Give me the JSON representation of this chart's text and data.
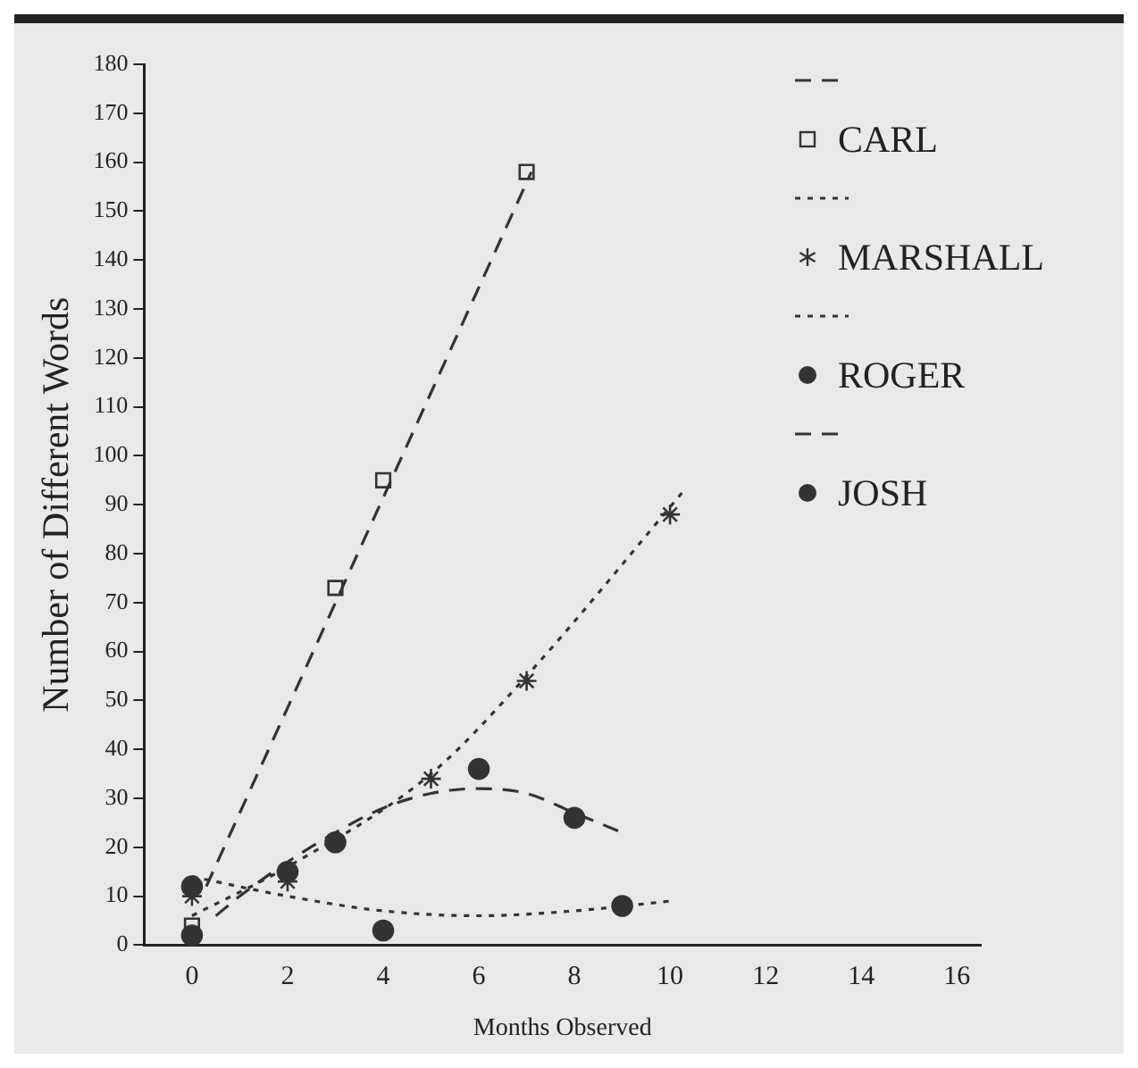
{
  "chart_data": {
    "type": "scatter",
    "xlabel": "Months Observed",
    "ylabel": "Number of Different Words",
    "xlim": [
      -1,
      16.5
    ],
    "xticks": [
      0,
      2,
      4,
      6,
      8,
      10,
      12,
      14,
      16
    ],
    "ylim": [
      0,
      180
    ],
    "yticks": [
      0,
      10,
      20,
      30,
      40,
      50,
      60,
      70,
      80,
      90,
      100,
      110,
      120,
      130,
      140,
      150,
      160,
      170,
      180
    ],
    "legend": "top right",
    "series": [
      {
        "type": "line",
        "color": "#333333",
        "line_style": "dashed",
        "x": [
          0.3,
          7.1
        ],
        "values": [
          12,
          158
        ]
      },
      {
        "name": "CARL",
        "color": "#333333",
        "marker": "square",
        "x": [
          0,
          3,
          4,
          7
        ],
        "values": [
          4,
          73,
          95,
          158
        ]
      },
      {
        "type": "line",
        "color": "#333333",
        "line_style": "dotted",
        "x": [
          0,
          2,
          5,
          7,
          10.3
        ],
        "values": [
          6,
          16,
          35,
          55,
          93
        ]
      },
      {
        "name": "MARSHALL",
        "color": "#333333",
        "marker": "cross",
        "x": [
          0,
          2,
          5,
          7,
          10
        ],
        "values": [
          10,
          13,
          34,
          54,
          88
        ]
      },
      {
        "type": "line",
        "color": "#333333",
        "line_style": "dotted",
        "x": [
          0,
          2,
          4,
          6,
          8,
          10
        ],
        "values": [
          14,
          10,
          7,
          6,
          7,
          9
        ]
      },
      {
        "name": "ROGER",
        "color": "#333333",
        "marker": "circle",
        "x": [
          0,
          2,
          4,
          9
        ],
        "values": [
          12,
          15,
          3,
          8
        ]
      },
      {
        "type": "line",
        "color": "#333333",
        "line_style": "dashed",
        "x": [
          0.5,
          1,
          2,
          3,
          4,
          5,
          6,
          7,
          8,
          9
        ],
        "values": [
          6,
          10,
          17,
          23,
          28,
          31,
          32,
          31,
          27,
          23
        ]
      },
      {
        "name": "JOSH",
        "color": "#333333",
        "marker": "circle",
        "x": [
          0,
          3,
          6,
          8
        ],
        "values": [
          2,
          21,
          36,
          26
        ]
      }
    ]
  }
}
